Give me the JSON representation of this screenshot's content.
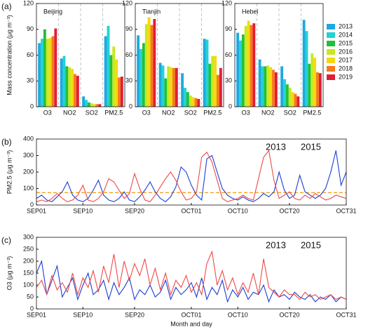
{
  "chart_data": [
    {
      "type": "bar",
      "panel_label": "(a)",
      "title": "Beijing",
      "ylabel": "Mass concentration (μg m⁻³)",
      "categories": [
        "O3",
        "NO2",
        "SO2",
        "PM2.5"
      ],
      "ylim": [
        0,
        120
      ],
      "yticks": [
        0,
        30,
        60,
        90,
        120
      ],
      "series": [
        {
          "name": "2013",
          "color": "#1fa8e0",
          "values": [
            74,
            56,
            12,
            82
          ]
        },
        {
          "name": "2014",
          "color": "#22d3d3",
          "values": [
            79,
            59,
            8,
            94
          ]
        },
        {
          "name": "2015",
          "color": "#22c03a",
          "values": [
            90,
            47,
            5,
            60
          ]
        },
        {
          "name": "2016",
          "color": "#c8e81e",
          "values": [
            79,
            46,
            4,
            70
          ]
        },
        {
          "name": "2017",
          "color": "#f5d80f",
          "values": [
            80,
            44,
            3,
            55
          ]
        },
        {
          "name": "2018",
          "color": "#f57a1e",
          "values": [
            82,
            38,
            3,
            34
          ]
        },
        {
          "name": "2019",
          "color": "#e01e38",
          "values": [
            91,
            36,
            3,
            35
          ]
        }
      ]
    },
    {
      "type": "bar",
      "title": "Tianjin",
      "categories": [
        "O3",
        "NO2",
        "SO2",
        "PM2.5"
      ],
      "ylim": [
        0,
        120
      ],
      "yticks": [
        0,
        30,
        60,
        90,
        120
      ],
      "series": [
        {
          "name": "2013",
          "color": "#1fa8e0",
          "values": [
            83,
            51,
            39,
            79
          ]
        },
        {
          "name": "2014",
          "color": "#22d3d3",
          "values": [
            67,
            48,
            22,
            78
          ]
        },
        {
          "name": "2015",
          "color": "#22c03a",
          "values": [
            74,
            33,
            17,
            50
          ]
        },
        {
          "name": "2016",
          "color": "#c8e81e",
          "values": [
            96,
            47,
            13,
            59
          ]
        },
        {
          "name": "2017",
          "color": "#f5d80f",
          "values": [
            104,
            46,
            11,
            59
          ]
        },
        {
          "name": "2018",
          "color": "#f57a1e",
          "values": [
            95,
            45,
            10,
            37
          ]
        },
        {
          "name": "2019",
          "color": "#e01e38",
          "values": [
            102,
            45,
            9,
            45
          ]
        }
      ]
    },
    {
      "type": "bar",
      "title": "Hebei",
      "categories": [
        "O3",
        "NO2",
        "SO2",
        "PM2.5"
      ],
      "ylim": [
        0,
        120
      ],
      "yticks": [
        0,
        30,
        60,
        90,
        120
      ],
      "series": [
        {
          "name": "2013",
          "color": "#1fa8e0",
          "values": [
            86,
            55,
            47,
            101
          ]
        },
        {
          "name": "2014",
          "color": "#22d3d3",
          "values": [
            77,
            47,
            32,
            88
          ]
        },
        {
          "name": "2015",
          "color": "#22c03a",
          "values": [
            84,
            47,
            26,
            50
          ]
        },
        {
          "name": "2016",
          "color": "#c8e81e",
          "values": [
            94,
            48,
            22,
            62
          ]
        },
        {
          "name": "2017",
          "color": "#f5d80f",
          "values": [
            100,
            46,
            17,
            57
          ]
        },
        {
          "name": "2018",
          "color": "#f57a1e",
          "values": [
            95,
            43,
            15,
            40
          ]
        },
        {
          "name": "2019",
          "color": "#e01e38",
          "values": [
            97,
            40,
            12,
            39
          ]
        }
      ]
    },
    {
      "type": "line",
      "panel_label": "(b)",
      "ylabel": "PM2.5 (μg m⁻³)",
      "xlim": [
        0,
        60
      ],
      "xticks": [
        {
          "value": 0,
          "label": "SEP01"
        },
        {
          "value": 9,
          "label": "SEP10"
        },
        {
          "value": 19,
          "label": "SEP20"
        },
        {
          "value": 30,
          "label": "OCT01"
        },
        {
          "value": 39,
          "label": "OCT10"
        },
        {
          "value": 49,
          "label": "OCT20"
        },
        {
          "value": 60,
          "label": "OCT31"
        }
      ],
      "ylim": [
        0,
        400
      ],
      "yticks": [
        0,
        100,
        200,
        300,
        400
      ],
      "reference_line": {
        "value": 75,
        "color": "#f39c12"
      },
      "x": [
        0,
        1,
        2,
        3,
        4,
        5,
        6,
        7,
        8,
        9,
        10,
        11,
        12,
        13,
        14,
        15,
        16,
        17,
        18,
        19,
        20,
        21,
        22,
        23,
        24,
        25,
        26,
        27,
        28,
        29,
        30,
        31,
        32,
        33,
        34,
        35,
        36,
        37,
        38,
        39,
        40,
        41,
        42,
        43,
        44,
        45,
        46,
        47,
        48,
        49,
        50,
        51,
        52,
        53,
        54,
        55,
        56,
        57,
        58,
        59,
        60
      ],
      "series": [
        {
          "name": "2013",
          "color": "#1a3fd0",
          "values": [
            40,
            60,
            30,
            20,
            50,
            80,
            140,
            60,
            30,
            20,
            40,
            90,
            150,
            60,
            30,
            20,
            40,
            80,
            30,
            20,
            50,
            90,
            140,
            80,
            40,
            20,
            50,
            110,
            230,
            200,
            120,
            60,
            30,
            280,
            300,
            200,
            100,
            60,
            40,
            30,
            50,
            30,
            20,
            40,
            70,
            50,
            80,
            200,
            90,
            40,
            60,
            180,
            80,
            60,
            40,
            60,
            100,
            200,
            330,
            120,
            200
          ]
        },
        {
          "name": "2015",
          "color": "#f04848",
          "values": [
            20,
            30,
            20,
            40,
            70,
            40,
            20,
            30,
            60,
            120,
            30,
            20,
            40,
            80,
            160,
            140,
            90,
            40,
            70,
            190,
            100,
            30,
            20,
            60,
            110,
            160,
            200,
            150,
            80,
            30,
            40,
            80,
            290,
            320,
            260,
            150,
            40,
            20,
            30,
            40,
            60,
            40,
            30,
            160,
            290,
            330,
            150,
            40,
            60,
            80,
            40,
            30,
            60,
            40,
            70,
            50,
            30,
            40,
            60,
            50,
            40
          ]
        }
      ]
    },
    {
      "type": "line",
      "panel_label": "(c)",
      "ylabel": "O3 (μg m⁻³)",
      "xlabel": "Month and day",
      "xlim": [
        0,
        60
      ],
      "xticks": [
        {
          "value": 0,
          "label": "SEP01"
        },
        {
          "value": 9,
          "label": "SEP10"
        },
        {
          "value": 19,
          "label": "SEP20"
        },
        {
          "value": 30,
          "label": "OCT01"
        },
        {
          "value": 39,
          "label": "OCT10"
        },
        {
          "value": 49,
          "label": "OCT20"
        },
        {
          "value": 60,
          "label": "OCT31"
        }
      ],
      "ylim": [
        0,
        300
      ],
      "yticks": [
        0,
        50,
        100,
        150,
        200,
        250,
        300
      ],
      "x": [
        0,
        1,
        2,
        3,
        4,
        5,
        6,
        7,
        8,
        9,
        10,
        11,
        12,
        13,
        14,
        15,
        16,
        17,
        18,
        19,
        20,
        21,
        22,
        23,
        24,
        25,
        26,
        27,
        28,
        29,
        30,
        31,
        32,
        33,
        34,
        35,
        36,
        37,
        38,
        39,
        40,
        41,
        42,
        43,
        44,
        45,
        46,
        47,
        48,
        49,
        50,
        51,
        52,
        53,
        54,
        55,
        56,
        57,
        58,
        59,
        60
      ],
      "series": [
        {
          "name": "2013",
          "color": "#1a3fd0",
          "values": [
            150,
            200,
            60,
            120,
            180,
            50,
            90,
            130,
            40,
            100,
            150,
            60,
            80,
            120,
            40,
            110,
            60,
            90,
            130,
            40,
            80,
            60,
            100,
            50,
            70,
            120,
            40,
            90,
            60,
            80,
            110,
            50,
            130,
            40,
            90,
            60,
            120,
            30,
            80,
            50,
            90,
            40,
            70,
            60,
            100,
            30,
            80,
            50,
            60,
            40,
            70,
            50,
            40,
            60,
            30,
            50,
            40,
            60,
            30,
            50,
            40
          ]
        },
        {
          "name": "2015",
          "color": "#f04848",
          "values": [
            90,
            120,
            60,
            140,
            80,
            110,
            70,
            150,
            60,
            130,
            90,
            160,
            70,
            180,
            110,
            230,
            90,
            200,
            120,
            190,
            140,
            210,
            100,
            170,
            80,
            150,
            60,
            120,
            90,
            140,
            70,
            110,
            60,
            190,
            240,
            100,
            160,
            80,
            130,
            60,
            110,
            70,
            150,
            60,
            210,
            90,
            70,
            50,
            80,
            60,
            60,
            40,
            70,
            50,
            60,
            40,
            50,
            60,
            40,
            50,
            40
          ]
        }
      ]
    }
  ]
}
